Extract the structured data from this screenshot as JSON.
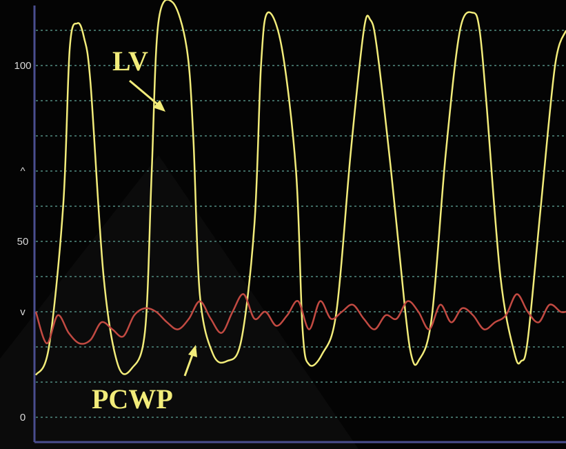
{
  "chart_data": {
    "type": "line",
    "title": "",
    "xlabel": "",
    "ylabel": "",
    "ylim": [
      0,
      120
    ],
    "y_ticks": [
      {
        "value": 0,
        "label": "0"
      },
      {
        "value": 50,
        "label": "50"
      },
      {
        "value": 100,
        "label": "100"
      }
    ],
    "y_markers": [
      {
        "value": 70,
        "label": "^"
      },
      {
        "value": 30,
        "label": "v"
      }
    ],
    "grid": true,
    "legend": "none",
    "colors": {
      "background": "#040404",
      "grid": "#3f6b63",
      "axis": "#4a4e8f",
      "lv": "#f2ec7a",
      "pcwp": "#c24a42",
      "annotation": "#f2ec7a"
    },
    "series": [
      {
        "name": "LV",
        "x": [
          0,
          0.12,
          0.25,
          0.31,
          0.38,
          0.44,
          0.5,
          0.62,
          0.75,
          0.88,
          1.0,
          1.06,
          1.12,
          1.25,
          1.38,
          1.44,
          1.5,
          1.62,
          1.75,
          1.88,
          2.0,
          2.06,
          2.12,
          2.25,
          2.38,
          2.44,
          2.5,
          2.62,
          2.75,
          2.88,
          3.0,
          3.06,
          3.12,
          3.25,
          3.38,
          3.44,
          3.5,
          3.62,
          3.75,
          3.88,
          4.0,
          4.06,
          4.12,
          4.25,
          4.38,
          4.44,
          4.5,
          4.62,
          4.75,
          4.85
        ],
        "values": [
          12,
          20,
          60,
          105,
          112,
          108,
          95,
          40,
          15,
          14,
          25,
          70,
          112,
          118,
          105,
          80,
          35,
          18,
          16,
          22,
          55,
          100,
          115,
          105,
          70,
          25,
          15,
          18,
          30,
          75,
          110,
          113,
          105,
          70,
          30,
          17,
          16,
          28,
          75,
          110,
          115,
          110,
          90,
          40,
          18,
          16,
          22,
          60,
          100,
          110
        ]
      },
      {
        "name": "PCWP",
        "x": [
          0,
          0.1,
          0.2,
          0.3,
          0.4,
          0.5,
          0.6,
          0.7,
          0.8,
          0.9,
          1.0,
          1.1,
          1.2,
          1.3,
          1.4,
          1.5,
          1.6,
          1.7,
          1.8,
          1.9,
          2.0,
          2.1,
          2.2,
          2.3,
          2.4,
          2.5,
          2.6,
          2.7,
          2.8,
          2.9,
          3.0,
          3.1,
          3.2,
          3.3,
          3.4,
          3.5,
          3.6,
          3.7,
          3.8,
          3.9,
          4.0,
          4.1,
          4.2,
          4.3,
          4.4,
          4.5,
          4.6,
          4.7,
          4.8,
          4.85
        ],
        "values": [
          30,
          21,
          29,
          24,
          21,
          22,
          27,
          25,
          23,
          29,
          31,
          30,
          27,
          25,
          28,
          33,
          28,
          24,
          30,
          35,
          28,
          30,
          26,
          29,
          33,
          25,
          33,
          28,
          30,
          32,
          28,
          25,
          29,
          28,
          33,
          30,
          25,
          32,
          27,
          31,
          29,
          25,
          27,
          29,
          35,
          30,
          27,
          32,
          30,
          30
        ]
      }
    ],
    "annotations": [
      {
        "text": "LV",
        "target_series": "LV"
      },
      {
        "text": "PCWP",
        "target_series": "PCWP"
      }
    ]
  }
}
